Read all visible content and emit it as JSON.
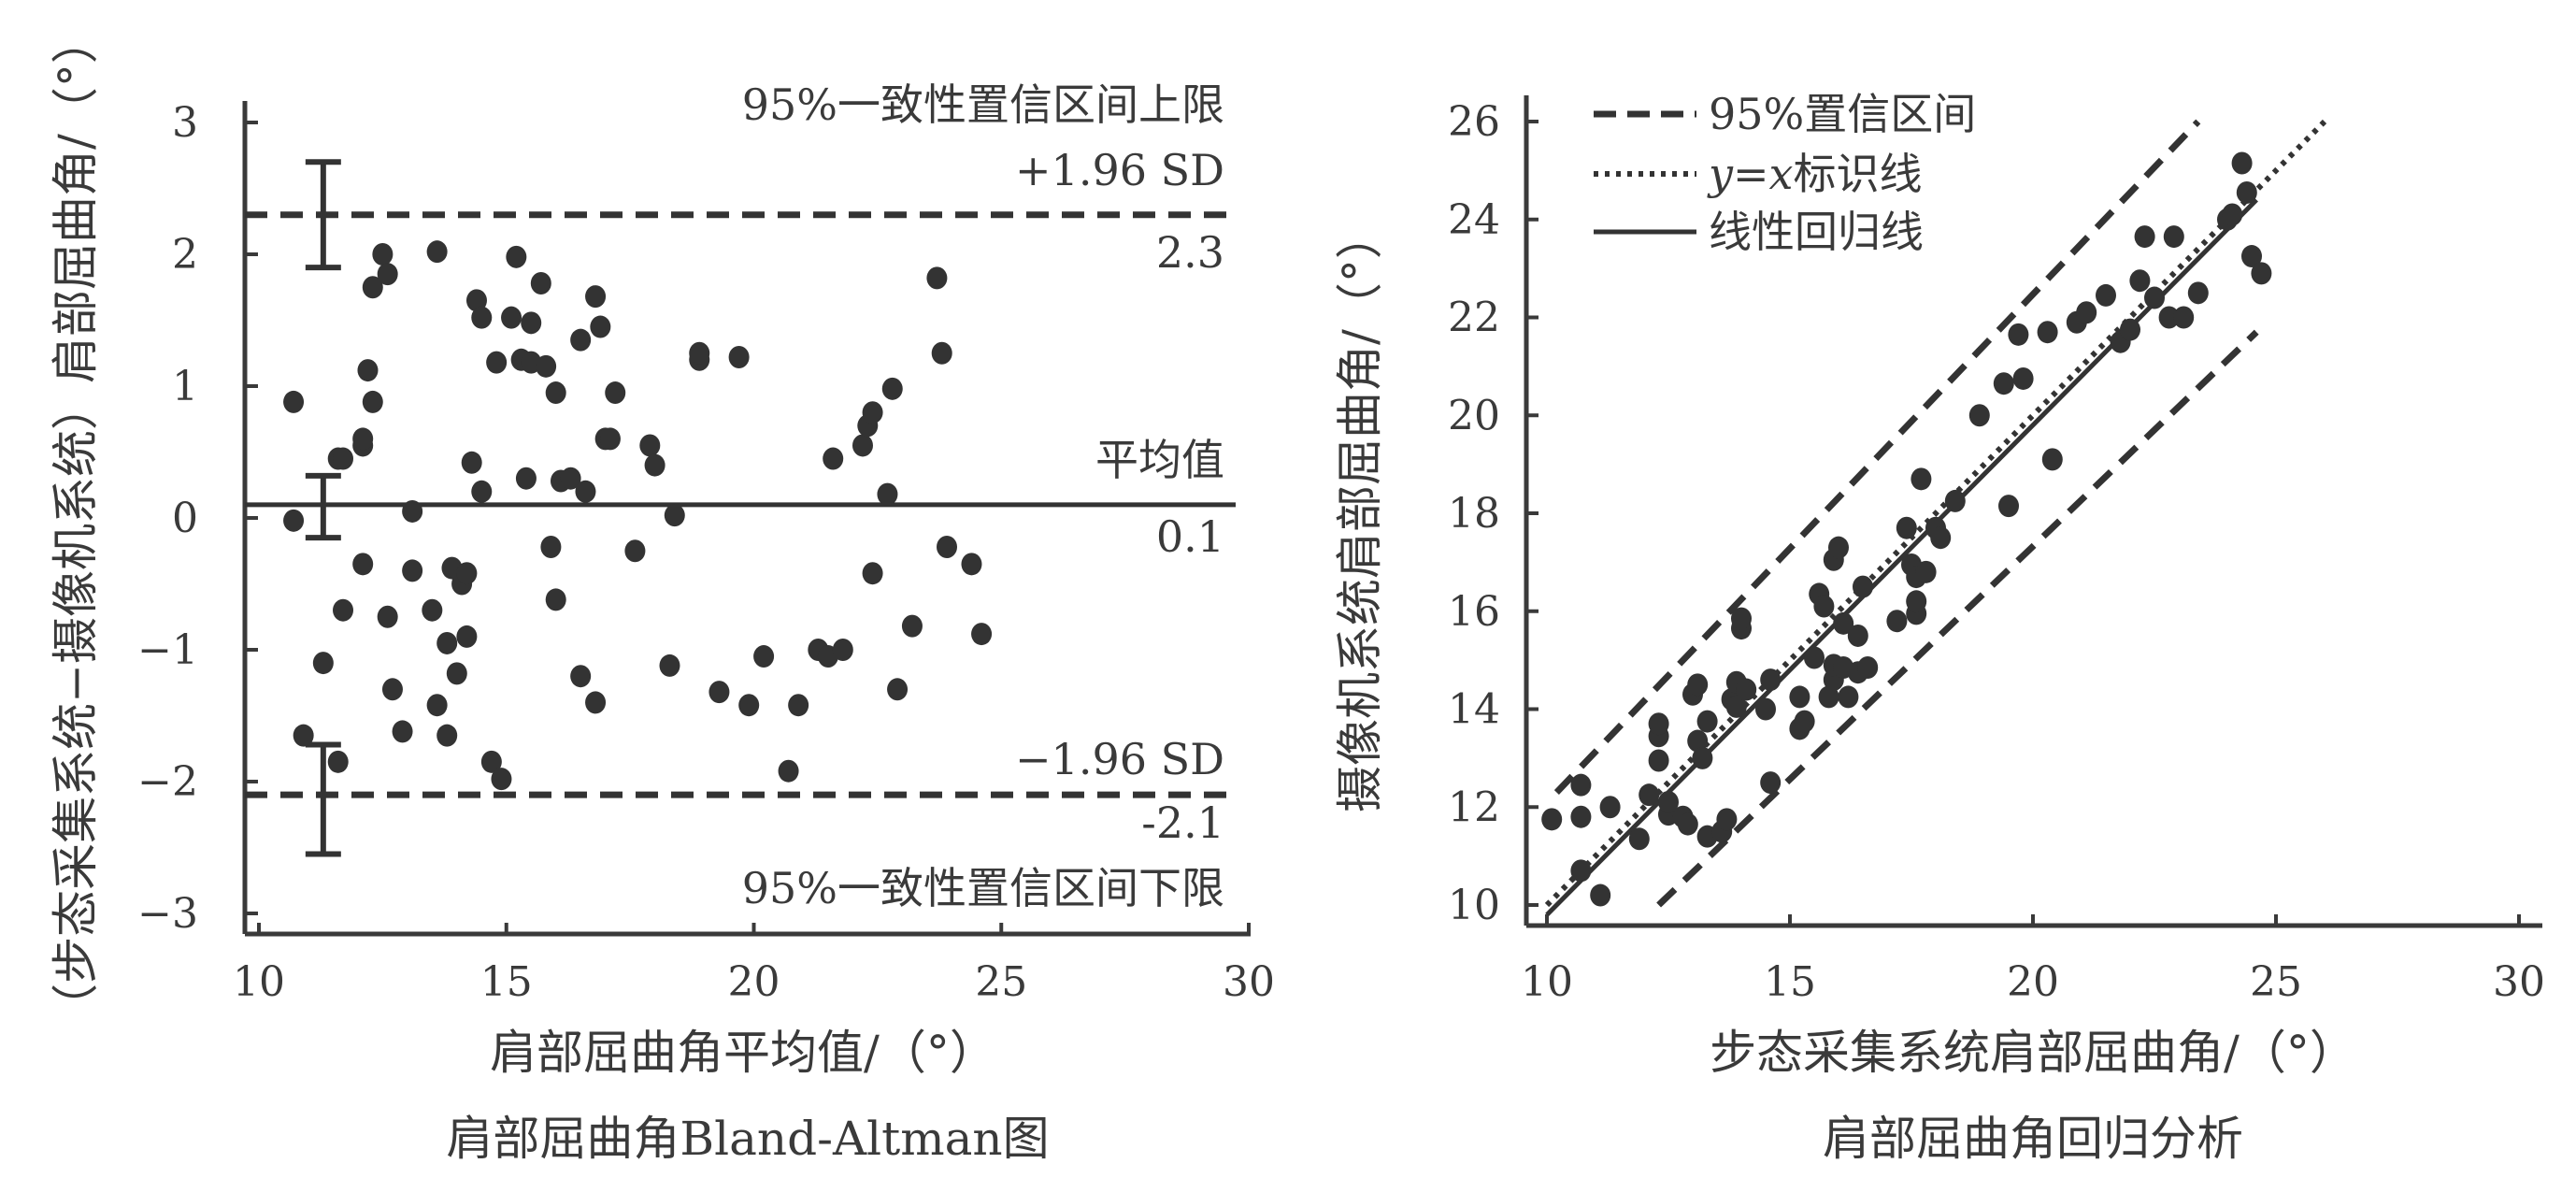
{
  "colors": {
    "ink": "#333333",
    "background": "#ffffff"
  },
  "left_panel": {
    "ylabel": "（步态采集系统−摄像机系统）肩部屈曲角/（°）",
    "xlabel": "肩部屈曲角平均值/（°）",
    "caption": "肩部屈曲角Bland-Altman图",
    "upper_title": "95%一致性置信区间上限",
    "upper_sd_label": "+1.96 SD",
    "upper_value": "2.3",
    "mean_title": "平均值",
    "mean_value": "0.1",
    "lower_sd_label": "−1.96 SD",
    "lower_value": "-2.1",
    "lower_title": "95%一致性置信区间下限",
    "xticks": [
      "10",
      "15",
      "20",
      "25",
      "30"
    ],
    "yticks": [
      "3",
      "2",
      "1",
      "0",
      "−1",
      "−2",
      "−3"
    ]
  },
  "right_panel": {
    "ylabel": "摄像机系统肩部屈曲角/（°）",
    "xlabel": "步态采集系统肩部屈曲角/（°）",
    "caption": "肩部屈曲角回归分析",
    "legend": [
      {
        "label": "95%置信区间",
        "style": "dashed"
      },
      {
        "label": "y=x标识线",
        "style": "dotted"
      },
      {
        "label": "线性回归线",
        "style": "solid"
      }
    ],
    "xticks": [
      "10",
      "15",
      "20",
      "25",
      "30"
    ],
    "yticks": [
      "26",
      "24",
      "22",
      "20",
      "18",
      "16",
      "14",
      "12",
      "10"
    ]
  },
  "chart_data": [
    {
      "type": "scatter",
      "title": "肩部屈曲角Bland-Altman图",
      "xlabel": "肩部屈曲角平均值/（°）",
      "ylabel": "（步态采集系统−摄像机系统）肩部屈曲角/（°）",
      "xlim": [
        10,
        30
      ],
      "ylim": [
        -3.2,
        3.2
      ],
      "grid": false,
      "reference_lines": [
        {
          "label": "95%一致性置信区间上限 +1.96 SD",
          "value": 2.3,
          "style": "dashed"
        },
        {
          "label": "平均值",
          "value": 0.1,
          "style": "solid"
        },
        {
          "label": "95%一致性置信区间下限 −1.96 SD",
          "value": -2.1,
          "style": "dashed"
        }
      ],
      "error_bars": [
        {
          "x": 11.3,
          "center": 2.3,
          "low": 1.9,
          "high": 2.7
        },
        {
          "x": 11.3,
          "center": 0.1,
          "low": -0.15,
          "high": 0.32
        },
        {
          "x": 11.3,
          "center": -2.1,
          "low": -2.55,
          "high": -1.72
        }
      ],
      "points": [
        [
          10.7,
          0.88
        ],
        [
          10.7,
          -0.02
        ],
        [
          10.9,
          -1.65
        ],
        [
          11.3,
          -1.1
        ],
        [
          11.6,
          0.45
        ],
        [
          11.7,
          0.45
        ],
        [
          11.7,
          -0.7
        ],
        [
          11.6,
          -1.85
        ],
        [
          12.1,
          0.55
        ],
        [
          12.1,
          0.6
        ],
        [
          12.1,
          -0.35
        ],
        [
          12.2,
          1.12
        ],
        [
          12.3,
          0.88
        ],
        [
          12.3,
          1.75
        ],
        [
          12.5,
          2.0
        ],
        [
          12.6,
          1.85
        ],
        [
          12.6,
          -0.75
        ],
        [
          12.7,
          -1.3
        ],
        [
          12.9,
          -1.62
        ],
        [
          13.1,
          0.05
        ],
        [
          13.1,
          -0.4
        ],
        [
          13.5,
          -0.7
        ],
        [
          13.6,
          2.02
        ],
        [
          13.6,
          -1.42
        ],
        [
          13.8,
          -0.95
        ],
        [
          13.8,
          -1.65
        ],
        [
          13.9,
          -0.38
        ],
        [
          14.0,
          -1.18
        ],
        [
          14.1,
          -0.5
        ],
        [
          14.2,
          -0.9
        ],
        [
          14.2,
          -0.42
        ],
        [
          14.3,
          0.42
        ],
        [
          14.4,
          1.65
        ],
        [
          14.5,
          1.52
        ],
        [
          14.5,
          0.2
        ],
        [
          14.7,
          -1.85
        ],
        [
          14.8,
          1.18
        ],
        [
          14.9,
          -1.98
        ],
        [
          15.1,
          1.52
        ],
        [
          15.2,
          1.98
        ],
        [
          15.3,
          1.2
        ],
        [
          15.4,
          0.3
        ],
        [
          15.5,
          1.48
        ],
        [
          15.5,
          1.18
        ],
        [
          15.7,
          1.78
        ],
        [
          15.8,
          1.15
        ],
        [
          15.9,
          -0.22
        ],
        [
          16.0,
          0.95
        ],
        [
          16.0,
          -0.62
        ],
        [
          16.1,
          0.28
        ],
        [
          16.3,
          0.3
        ],
        [
          16.5,
          1.35
        ],
        [
          16.5,
          -1.2
        ],
        [
          16.6,
          0.2
        ],
        [
          16.8,
          1.68
        ],
        [
          16.8,
          -1.4
        ],
        [
          16.9,
          1.45
        ],
        [
          17.0,
          0.6
        ],
        [
          17.1,
          0.6
        ],
        [
          17.2,
          0.95
        ],
        [
          17.6,
          -0.25
        ],
        [
          17.9,
          0.55
        ],
        [
          18.0,
          0.4
        ],
        [
          18.3,
          -1.12
        ],
        [
          18.4,
          0.02
        ],
        [
          18.9,
          1.2
        ],
        [
          18.9,
          1.25
        ],
        [
          19.3,
          -1.32
        ],
        [
          19.7,
          1.22
        ],
        [
          19.9,
          -1.42
        ],
        [
          20.2,
          -1.05
        ],
        [
          20.7,
          -1.92
        ],
        [
          20.9,
          -1.42
        ],
        [
          21.3,
          -1.0
        ],
        [
          21.5,
          -1.05
        ],
        [
          21.6,
          0.45
        ],
        [
          21.8,
          -1.0
        ],
        [
          22.2,
          0.55
        ],
        [
          22.3,
          0.7
        ],
        [
          22.4,
          0.8
        ],
        [
          22.4,
          -0.42
        ],
        [
          22.7,
          0.18
        ],
        [
          22.8,
          0.98
        ],
        [
          22.9,
          -1.3
        ],
        [
          23.2,
          -0.82
        ],
        [
          23.7,
          1.82
        ],
        [
          23.8,
          1.25
        ],
        [
          23.9,
          -0.22
        ],
        [
          24.4,
          -0.35
        ],
        [
          24.6,
          -0.88
        ]
      ]
    },
    {
      "type": "scatter",
      "title": "肩部屈曲角回归分析",
      "xlabel": "步态采集系统肩部屈曲角/（°）",
      "ylabel": "摄像机系统肩部屈曲角/（°）",
      "xlim": [
        10,
        30
      ],
      "ylim": [
        9.5,
        26.5
      ],
      "grid": false,
      "legend_position": "top-left",
      "lines": [
        {
          "name": "95%置信区间",
          "style": "dashed",
          "points": [
            [
              10.2,
              12.3
            ],
            [
              23.4,
              26.0
            ]
          ]
        },
        {
          "name": "95%置信区间",
          "style": "dashed",
          "points": [
            [
              12.3,
              10.0
            ],
            [
              24.6,
              21.7
            ]
          ]
        },
        {
          "name": "y=x标识线",
          "style": "dotted",
          "points": [
            [
              10.0,
              10.0
            ],
            [
              26.0,
              26.0
            ]
          ]
        },
        {
          "name": "线性回归线",
          "style": "solid",
          "points": [
            [
              10.0,
              9.8
            ],
            [
              24.6,
              24.4
            ]
          ]
        }
      ],
      "points": [
        [
          10.1,
          11.75
        ],
        [
          10.7,
          12.45
        ],
        [
          10.7,
          11.8
        ],
        [
          10.7,
          10.7
        ],
        [
          11.1,
          10.2
        ],
        [
          11.3,
          12.0
        ],
        [
          11.9,
          11.35
        ],
        [
          12.1,
          12.25
        ],
        [
          12.3,
          13.45
        ],
        [
          12.3,
          13.7
        ],
        [
          12.3,
          12.95
        ],
        [
          12.5,
          11.85
        ],
        [
          12.5,
          12.1
        ],
        [
          12.8,
          11.8
        ],
        [
          12.9,
          11.65
        ],
        [
          13.0,
          14.3
        ],
        [
          13.1,
          14.5
        ],
        [
          13.1,
          13.35
        ],
        [
          13.2,
          13.0
        ],
        [
          13.3,
          13.75
        ],
        [
          13.3,
          11.4
        ],
        [
          13.6,
          11.5
        ],
        [
          13.7,
          11.75
        ],
        [
          13.8,
          14.2
        ],
        [
          13.9,
          14.55
        ],
        [
          13.9,
          14.05
        ],
        [
          14.0,
          15.65
        ],
        [
          14.0,
          15.85
        ],
        [
          14.1,
          14.4
        ],
        [
          14.5,
          14.0
        ],
        [
          14.6,
          12.5
        ],
        [
          14.6,
          14.6
        ],
        [
          15.2,
          13.6
        ],
        [
          15.2,
          14.25
        ],
        [
          15.3,
          13.75
        ],
        [
          15.5,
          15.05
        ],
        [
          15.6,
          16.35
        ],
        [
          15.7,
          16.1
        ],
        [
          15.8,
          14.25
        ],
        [
          15.9,
          17.05
        ],
        [
          15.9,
          14.6
        ],
        [
          15.9,
          14.9
        ],
        [
          16.0,
          17.3
        ],
        [
          16.1,
          14.85
        ],
        [
          16.1,
          15.75
        ],
        [
          16.2,
          14.25
        ],
        [
          16.4,
          15.5
        ],
        [
          16.4,
          14.75
        ],
        [
          16.5,
          16.5
        ],
        [
          16.6,
          14.85
        ],
        [
          17.2,
          15.8
        ],
        [
          17.4,
          17.7
        ],
        [
          17.5,
          16.95
        ],
        [
          17.6,
          16.7
        ],
        [
          17.6,
          15.95
        ],
        [
          17.6,
          16.2
        ],
        [
          17.7,
          18.7
        ],
        [
          17.8,
          16.8
        ],
        [
          18.0,
          17.7
        ],
        [
          18.1,
          17.5
        ],
        [
          18.4,
          18.25
        ],
        [
          18.9,
          20.0
        ],
        [
          19.4,
          20.65
        ],
        [
          19.5,
          18.15
        ],
        [
          19.7,
          21.65
        ],
        [
          19.8,
          20.75
        ],
        [
          20.3,
          21.7
        ],
        [
          20.4,
          19.1
        ],
        [
          20.9,
          21.9
        ],
        [
          21.1,
          22.1
        ],
        [
          21.5,
          22.45
        ],
        [
          21.8,
          21.5
        ],
        [
          22.0,
          21.75
        ],
        [
          22.2,
          22.75
        ],
        [
          22.3,
          23.65
        ],
        [
          22.5,
          22.4
        ],
        [
          22.8,
          22.0
        ],
        [
          22.9,
          23.65
        ],
        [
          23.1,
          22.0
        ],
        [
          23.4,
          22.5
        ],
        [
          24.0,
          24.0
        ],
        [
          24.1,
          24.1
        ],
        [
          24.3,
          25.15
        ],
        [
          24.4,
          24.55
        ],
        [
          24.5,
          23.25
        ],
        [
          24.7,
          22.9
        ]
      ]
    }
  ]
}
